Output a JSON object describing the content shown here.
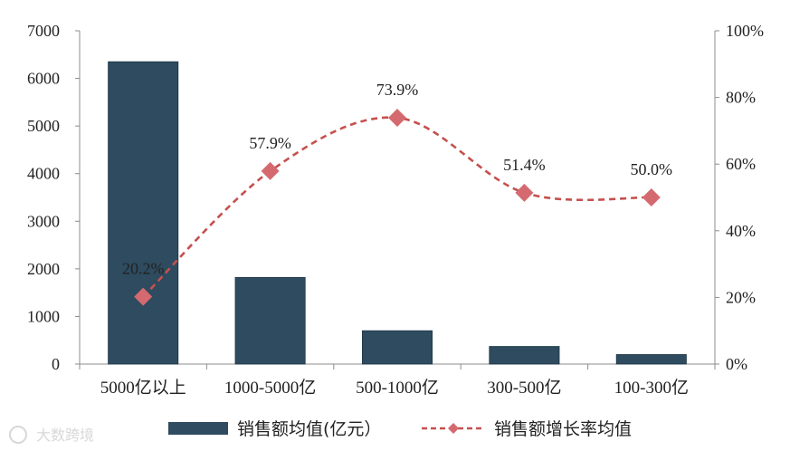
{
  "chart_data": {
    "type": "bar+line",
    "categories": [
      "5000亿以上",
      "1000-5000亿",
      "500-1000亿",
      "300-500亿",
      "100-300亿"
    ],
    "bar_series": {
      "name": "销售额均值(亿元）",
      "values": [
        6350,
        1820,
        700,
        370,
        200
      ],
      "color": "#2e4b5f"
    },
    "line_series": {
      "name": "销售额增长率均值",
      "values": [
        20.2,
        57.9,
        73.9,
        51.4,
        50.0
      ],
      "labels": [
        "20.2%",
        "57.9%",
        "73.9%",
        "51.4%",
        "50.0%"
      ],
      "color": "#c5504e",
      "marker_color": "#d46a6f"
    },
    "y_left": {
      "min": 0,
      "max": 7000,
      "ticks": [
        "0",
        "1000",
        "2000",
        "3000",
        "4000",
        "5000",
        "6000",
        "7000"
      ]
    },
    "y_right": {
      "min": 0,
      "max": 100,
      "ticks": [
        "0%",
        "20%",
        "40%",
        "60%",
        "80%",
        "100%"
      ]
    },
    "grid": false,
    "legend_position": "bottom"
  },
  "watermark": "大数跨境"
}
